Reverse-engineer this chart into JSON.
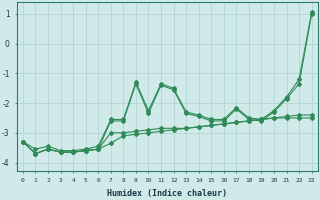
{
  "x": [
    0,
    1,
    2,
    3,
    4,
    5,
    6,
    7,
    8,
    9,
    10,
    11,
    12,
    13,
    14,
    15,
    16,
    17,
    18,
    19,
    20,
    21,
    22,
    23
  ],
  "line1": [
    -3.3,
    -3.7,
    -3.55,
    -3.65,
    -3.65,
    -3.6,
    -3.55,
    -3.35,
    -3.1,
    -3.05,
    -3.0,
    -2.95,
    -2.9,
    -2.85,
    -2.8,
    -2.75,
    -2.7,
    -2.65,
    -2.6,
    -2.55,
    -2.5,
    -2.45,
    -2.4,
    -2.4
  ],
  "line2": [
    -3.3,
    -3.7,
    -3.55,
    -3.65,
    -3.65,
    -3.6,
    -3.55,
    -3.0,
    -3.0,
    -2.95,
    -2.9,
    -2.85,
    -2.85,
    -2.85,
    -2.8,
    -2.75,
    -2.7,
    -2.65,
    -2.6,
    -2.55,
    -2.5,
    -2.5,
    -2.5,
    -2.5
  ],
  "line3": [
    -3.3,
    -3.7,
    -3.55,
    -3.65,
    -3.65,
    -3.6,
    -3.55,
    -2.6,
    -2.6,
    -1.35,
    -2.35,
    -1.4,
    -1.55,
    -2.35,
    -2.45,
    -2.6,
    -2.6,
    -2.2,
    -2.55,
    -2.6,
    -2.3,
    -1.85,
    -1.35,
    1.0
  ],
  "line4": [
    -3.3,
    -3.55,
    -3.45,
    -3.6,
    -3.6,
    -3.55,
    -3.45,
    -2.55,
    -2.55,
    -1.3,
    -2.25,
    -1.35,
    -1.5,
    -2.3,
    -2.4,
    -2.55,
    -2.55,
    -2.15,
    -2.5,
    -2.55,
    -2.25,
    -1.8,
    -1.2,
    1.05
  ],
  "color": "#2E8B57",
  "bg_color": "#d0eaea",
  "grid_color": "#b8d8d8",
  "xlabel": "Humidex (Indice chaleur)",
  "ylim": [
    -4.3,
    1.4
  ],
  "xlim": [
    -0.5,
    23.5
  ],
  "yticks": [
    1,
    0,
    -1,
    -2,
    -3,
    -4
  ],
  "xtick_labels": [
    "0",
    "1",
    "2",
    "3",
    "4",
    "5",
    "6",
    "7",
    "8",
    "9",
    "10",
    "11",
    "12",
    "13",
    "14",
    "15",
    "16",
    "17",
    "18",
    "19",
    "20",
    "21",
    "22",
    "23"
  ]
}
